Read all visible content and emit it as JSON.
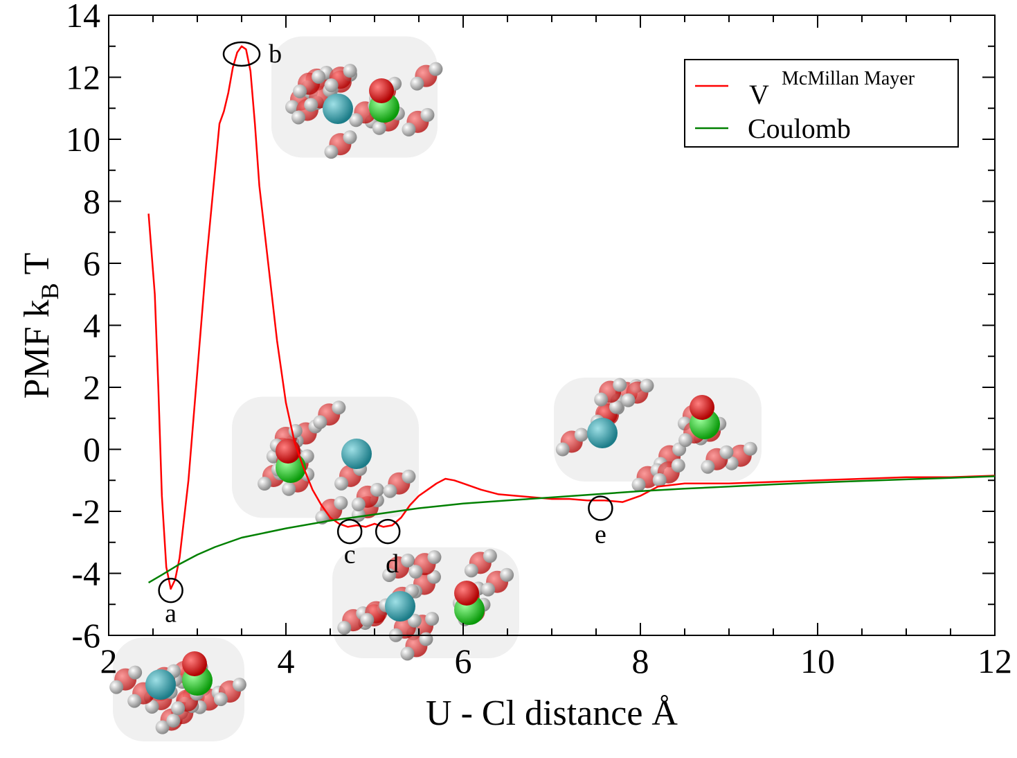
{
  "chart_data": {
    "type": "line",
    "xlabel": "U - Cl distance Å",
    "ylabel_main": "PMF k",
    "ylabel_sub": "B",
    "ylabel_tail": " T",
    "xlim": [
      2,
      12
    ],
    "ylim": [
      -6,
      14
    ],
    "x_ticks": [
      2,
      4,
      6,
      8,
      10,
      12
    ],
    "x_tick_labels": [
      "2",
      "4",
      "6",
      "8",
      "10",
      "12"
    ],
    "y_ticks": [
      -6,
      -4,
      -2,
      0,
      2,
      4,
      6,
      8,
      10,
      12,
      14
    ],
    "y_tick_labels": [
      "-6",
      "-4",
      "-2",
      "0",
      "2",
      "4",
      "6",
      "8",
      "10",
      "12",
      "14"
    ],
    "grid": false,
    "legend_position": "top-right",
    "series": [
      {
        "name": "V",
        "name_superscript": "McMillan Mayer",
        "color": "#ff0000",
        "x": [
          2.45,
          2.48,
          2.52,
          2.56,
          2.6,
          2.65,
          2.7,
          2.75,
          2.8,
          2.9,
          3.0,
          3.1,
          3.2,
          3.25,
          3.3,
          3.35,
          3.4,
          3.45,
          3.5,
          3.55,
          3.6,
          3.65,
          3.7,
          3.8,
          3.9,
          4.0,
          4.1,
          4.2,
          4.3,
          4.4,
          4.5,
          4.6,
          4.7,
          4.8,
          4.9,
          5.0,
          5.1,
          5.2,
          5.3,
          5.4,
          5.5,
          5.6,
          5.7,
          5.8,
          5.9,
          6.0,
          6.2,
          6.4,
          6.6,
          6.8,
          7.0,
          7.2,
          7.4,
          7.6,
          7.8,
          8.0,
          8.2,
          8.5,
          9.0,
          9.5,
          10.0,
          10.5,
          11.0,
          11.5,
          12.0
        ],
        "y": [
          7.6,
          6.5,
          5.0,
          2.0,
          -1.5,
          -3.8,
          -4.5,
          -4.2,
          -3.5,
          -1.0,
          2.5,
          6.0,
          9.0,
          10.5,
          10.9,
          11.5,
          12.3,
          12.8,
          13.0,
          12.9,
          12.2,
          10.5,
          8.5,
          6.0,
          3.5,
          1.5,
          0.2,
          -0.6,
          -1.3,
          -1.8,
          -2.2,
          -2.4,
          -2.5,
          -2.45,
          -2.5,
          -2.4,
          -2.5,
          -2.45,
          -2.2,
          -1.8,
          -1.5,
          -1.3,
          -1.1,
          -0.95,
          -1.0,
          -1.1,
          -1.3,
          -1.45,
          -1.5,
          -1.55,
          -1.6,
          -1.6,
          -1.65,
          -1.65,
          -1.7,
          -1.5,
          -1.2,
          -1.1,
          -1.1,
          -1.05,
          -1.0,
          -0.95,
          -0.9,
          -0.9,
          -0.85
        ]
      },
      {
        "name": "Coulomb",
        "color": "#008000",
        "x": [
          2.45,
          2.6,
          2.8,
          3.0,
          3.2,
          3.5,
          4.0,
          4.5,
          5.0,
          5.5,
          6.0,
          6.5,
          7.0,
          7.5,
          8.0,
          8.5,
          9.0,
          9.5,
          10.0,
          10.5,
          11.0,
          11.5,
          12.0
        ],
        "y": [
          -4.3,
          -4.05,
          -3.7,
          -3.4,
          -3.15,
          -2.85,
          -2.55,
          -2.3,
          -2.1,
          -1.9,
          -1.75,
          -1.65,
          -1.55,
          -1.45,
          -1.35,
          -1.27,
          -1.2,
          -1.13,
          -1.07,
          -1.02,
          -0.97,
          -0.92,
          -0.87
        ]
      }
    ],
    "annotations": [
      {
        "label": "a",
        "x": 2.7,
        "y": -4.55,
        "label_dx": 0.0,
        "label_dy": -0.75
      },
      {
        "label": "b",
        "x": 3.5,
        "y": 12.75,
        "label_dx": 0.38,
        "label_dy": 0.0
      },
      {
        "label": "c",
        "x": 4.72,
        "y": -2.65,
        "label_dx": 0.0,
        "label_dy": -0.75
      },
      {
        "label": "d",
        "x": 5.15,
        "y": -2.65,
        "label_dx": 0.05,
        "label_dy": -1.05
      },
      {
        "label": "e",
        "x": 7.55,
        "y": -1.9,
        "label_dx": 0.0,
        "label_dy": -0.85
      }
    ]
  }
}
